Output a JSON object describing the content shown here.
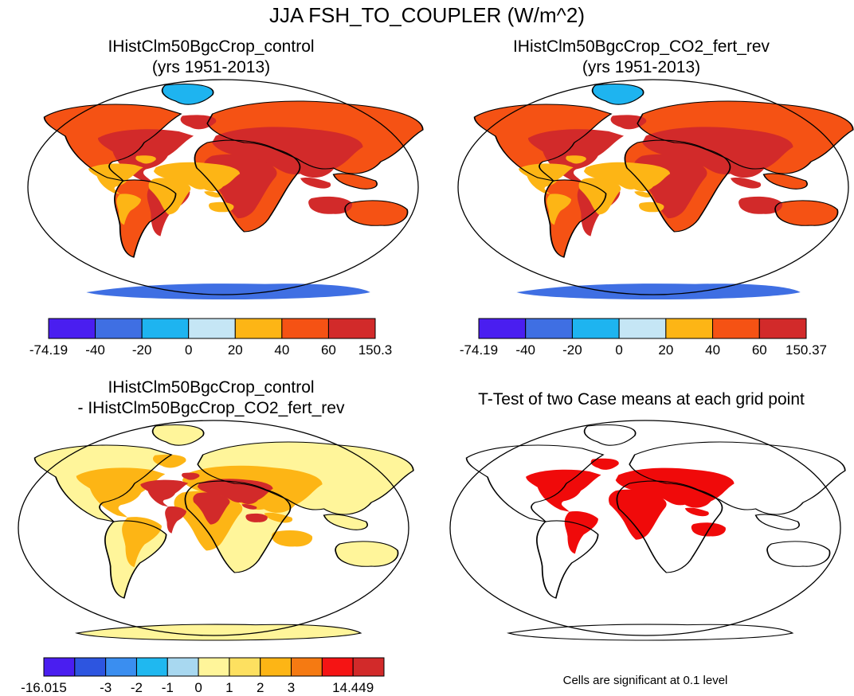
{
  "figure": {
    "title": "JJA FSH_TO_COUPLER (W/m^2)"
  },
  "panels": [
    {
      "id": "tl",
      "title_lines": [
        "IHistClm50BgcCrop_control",
        "(yrs 1951-2013)"
      ],
      "colorbar": "cb1"
    },
    {
      "id": "tr",
      "title_lines": [
        "IHistClm50BgcCrop_CO2_fert_rev",
        "(yrs 1951-2013)"
      ],
      "colorbar": "cb2"
    },
    {
      "id": "bl",
      "title_lines": [
        "IHistClm50BgcCrop_control",
        "- IHistClm50BgcCrop_CO2_fert_rev"
      ],
      "colorbar": "cb3"
    },
    {
      "id": "br",
      "title_lines": [
        "T-Test of two Case means at each grid point"
      ],
      "note": "Cells are significant at 0.1 level"
    }
  ],
  "colorbars": {
    "cb1": {
      "colors": [
        "#4a1ef0",
        "#3f6fe3",
        "#1eb4f0",
        "#c5e6f5",
        "#fdb515",
        "#f55214",
        "#d22a2a"
      ],
      "labels": [
        "-74.19",
        "-40",
        "-20",
        "0",
        "20",
        "40",
        "60",
        "150.3"
      ]
    },
    "cb2": {
      "colors": [
        "#4a1ef0",
        "#3f6fe3",
        "#1eb4f0",
        "#c5e6f5",
        "#fdb515",
        "#f55214",
        "#d22a2a"
      ],
      "labels": [
        "-74.19",
        "-40",
        "-20",
        "0",
        "20",
        "40",
        "60",
        "150.37"
      ]
    },
    "cb3": {
      "colors": [
        "#4a1ef0",
        "#2d55e0",
        "#3a8ef0",
        "#1fb8f0",
        "#a8d8f0",
        "#fff59a",
        "#fde060",
        "#fdb515",
        "#f57a12",
        "#f51414",
        "#d22a2a"
      ],
      "labels": [
        "-16.015",
        "",
        "-3",
        "-2",
        "-1",
        "0",
        "1",
        "2",
        "3",
        "",
        "14.449"
      ]
    }
  },
  "map_colors": {
    "significant": "#f00a0a"
  }
}
